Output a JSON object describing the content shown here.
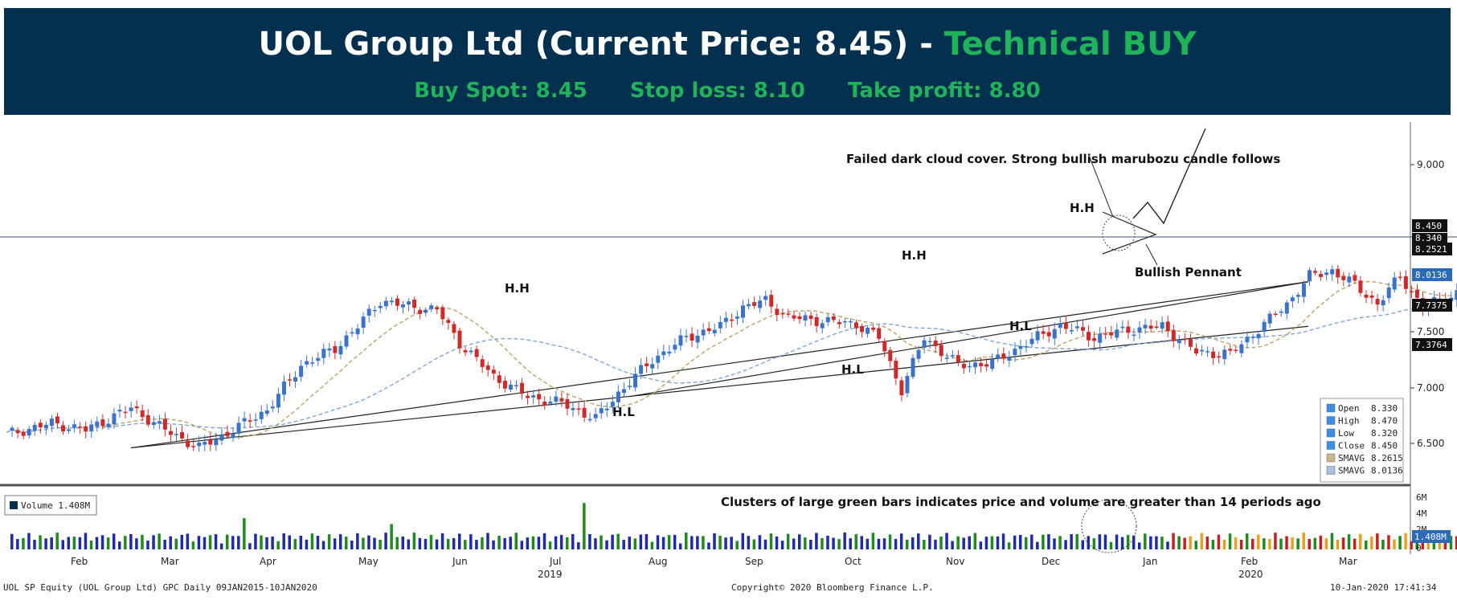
{
  "header": {
    "title_main": "UOL Group Ltd (Current Price: 8.45) - ",
    "title_signal": "Technical BUY",
    "buy_spot": "Buy Spot: 8.45",
    "stop_loss": "Stop loss: 8.10",
    "take_profit": "Take profit: 8.80"
  },
  "annotations": {
    "failed_cloud": "Failed dark cloud cover. Strong bullish marubozu candle follows",
    "bullish_pennant": "Bullish Pennant",
    "volume_note": "Clusters of large green bars indicates price and volume are greater than 14 periods ago",
    "higher_high": "H.H",
    "higher_low": "H.L"
  },
  "legend": {
    "items": [
      {
        "label": "Open",
        "value": "8.330",
        "color": "#3a8ee6"
      },
      {
        "label": "High",
        "value": "8.470",
        "color": "#3a8ee6"
      },
      {
        "label": "Low",
        "value": "8.320",
        "color": "#3a8ee6"
      },
      {
        "label": "Close",
        "value": "8.450",
        "color": "#3a8ee6"
      },
      {
        "label": "SMAVG",
        "value": "8.2615",
        "color": "#c9b98a"
      },
      {
        "label": "SMAVG",
        "value": "8.0136",
        "color": "#a9c2e6"
      }
    ]
  },
  "volume_legend": "Volume 1.408M",
  "price_tags": [
    {
      "value": "8.450",
      "bg": "#111111",
      "fg": "#ffffff"
    },
    {
      "value": "8.340",
      "bg": "#111111",
      "fg": "#ffffff"
    },
    {
      "value": "8.2521",
      "bg": "#111111",
      "fg": "#ffffff"
    },
    {
      "value": "8.0136",
      "bg": "#2a6ab8",
      "fg": "#ffffff"
    },
    {
      "value": "7.7375",
      "bg": "#111111",
      "fg": "#ffffff"
    },
    {
      "value": "7.3764",
      "bg": "#111111",
      "fg": "#ffffff"
    }
  ],
  "volume_tag": "1.408M",
  "footer": {
    "left": "UOL SP Equity (UOL Group Ltd) GPC  Daily 09JAN2015-10JAN2020",
    "center": "Copyright© 2020 Bloomberg Finance L.P.",
    "right": "10-Jan-2020 17:41:34"
  },
  "colors": {
    "header_bg": "#04304f",
    "accent_green": "#1fb35a",
    "candle_up": "#3a73c9",
    "candle_down": "#cf2a2a",
    "sma_short": "#b7a467",
    "sma_long": "#7fa6dc",
    "vol_green": "#1f8a1f",
    "vol_blue": "#1f2aa8",
    "vol_red": "#c81e1e",
    "vol_orange": "#e6a11e"
  },
  "chart_data": {
    "type": "candlestick",
    "price_axis": {
      "ylim": [
        6.2,
        9.35
      ],
      "ticks": [
        "9.000",
        "7.500",
        "7.000",
        "6.500"
      ]
    },
    "volume_axis": {
      "ylim": [
        0,
        6.5
      ],
      "ticks": [
        "6M",
        "4M",
        "2M",
        "0"
      ]
    },
    "x_labels": [
      "Feb",
      "Mar",
      "Apr",
      "May",
      "Jun",
      "Jul",
      "Aug",
      "Sep",
      "Oct",
      "Nov",
      "Dec",
      "Jan",
      "Feb",
      "Mar"
    ],
    "year_labels": [
      "2019",
      "2020"
    ],
    "ohlc_anchors": [
      {
        "day": 0,
        "close": 6.58
      },
      {
        "day": 8,
        "close": 6.68
      },
      {
        "day": 14,
        "close": 6.62
      },
      {
        "day": 22,
        "close": 6.82
      },
      {
        "day": 28,
        "close": 6.62
      },
      {
        "day": 34,
        "close": 6.46
      },
      {
        "day": 40,
        "close": 6.62
      },
      {
        "day": 46,
        "close": 6.8
      },
      {
        "day": 52,
        "close": 7.2
      },
      {
        "day": 58,
        "close": 7.35
      },
      {
        "day": 62,
        "close": 7.55
      },
      {
        "day": 66,
        "close": 7.78
      },
      {
        "day": 72,
        "close": 7.72
      },
      {
        "day": 76,
        "close": 7.7
      },
      {
        "day": 80,
        "close": 7.4
      },
      {
        "day": 86,
        "close": 7.1
      },
      {
        "day": 92,
        "close": 6.92
      },
      {
        "day": 98,
        "close": 6.86
      },
      {
        "day": 104,
        "close": 6.72
      },
      {
        "day": 108,
        "close": 6.95
      },
      {
        "day": 114,
        "close": 7.25
      },
      {
        "day": 120,
        "close": 7.45
      },
      {
        "day": 126,
        "close": 7.55
      },
      {
        "day": 130,
        "close": 7.72
      },
      {
        "day": 134,
        "close": 7.78
      },
      {
        "day": 138,
        "close": 7.63
      },
      {
        "day": 144,
        "close": 7.6
      },
      {
        "day": 150,
        "close": 7.57
      },
      {
        "day": 154,
        "close": 7.45
      },
      {
        "day": 158,
        "close": 6.98
      },
      {
        "day": 162,
        "close": 7.45
      },
      {
        "day": 168,
        "close": 7.2
      },
      {
        "day": 174,
        "close": 7.22
      },
      {
        "day": 180,
        "close": 7.4
      },
      {
        "day": 186,
        "close": 7.56
      },
      {
        "day": 192,
        "close": 7.45
      },
      {
        "day": 198,
        "close": 7.52
      },
      {
        "day": 204,
        "close": 7.55
      },
      {
        "day": 210,
        "close": 7.32
      },
      {
        "day": 216,
        "close": 7.3
      },
      {
        "day": 220,
        "close": 7.48
      },
      {
        "day": 226,
        "close": 7.75
      },
      {
        "day": 230,
        "close": 8.0
      },
      {
        "day": 234,
        "close": 8.05
      },
      {
        "day": 238,
        "close": 7.92
      },
      {
        "day": 242,
        "close": 7.75
      },
      {
        "day": 246,
        "close": 8.0
      },
      {
        "day": 250,
        "close": 7.72
      },
      {
        "day": 256,
        "close": 7.85
      },
      {
        "day": 262,
        "close": 7.68
      },
      {
        "day": 266,
        "close": 7.9
      },
      {
        "day": 270,
        "close": 8.05
      },
      {
        "day": 274,
        "close": 8.25
      },
      {
        "day": 278,
        "close": 8.35
      },
      {
        "day": 280,
        "close": 8.2
      },
      {
        "day": 283,
        "close": 8.52
      },
      {
        "day": 286,
        "close": 8.35
      },
      {
        "day": 289,
        "close": 8.3
      },
      {
        "day": 291,
        "close": 8.45
      }
    ],
    "current": {
      "open": 8.33,
      "high": 8.47,
      "low": 8.32,
      "close": 8.45
    },
    "sma_short_last": 8.2615,
    "sma_long_last": 8.0136,
    "volume_last_millions": 1.408,
    "volume_spikes": [
      {
        "day": 42,
        "value": 3.7,
        "color": "green"
      },
      {
        "day": 68,
        "value": 3.0,
        "color": "green"
      },
      {
        "day": 102,
        "value": 5.5,
        "color": "green"
      },
      {
        "day": 120,
        "value": 2.0,
        "color": "green"
      },
      {
        "day": 150,
        "value": 1.8,
        "color": "green"
      },
      {
        "day": 252,
        "value": 1.9,
        "color": "green"
      },
      {
        "day": 278,
        "value": 3.4,
        "color": "green"
      }
    ]
  }
}
